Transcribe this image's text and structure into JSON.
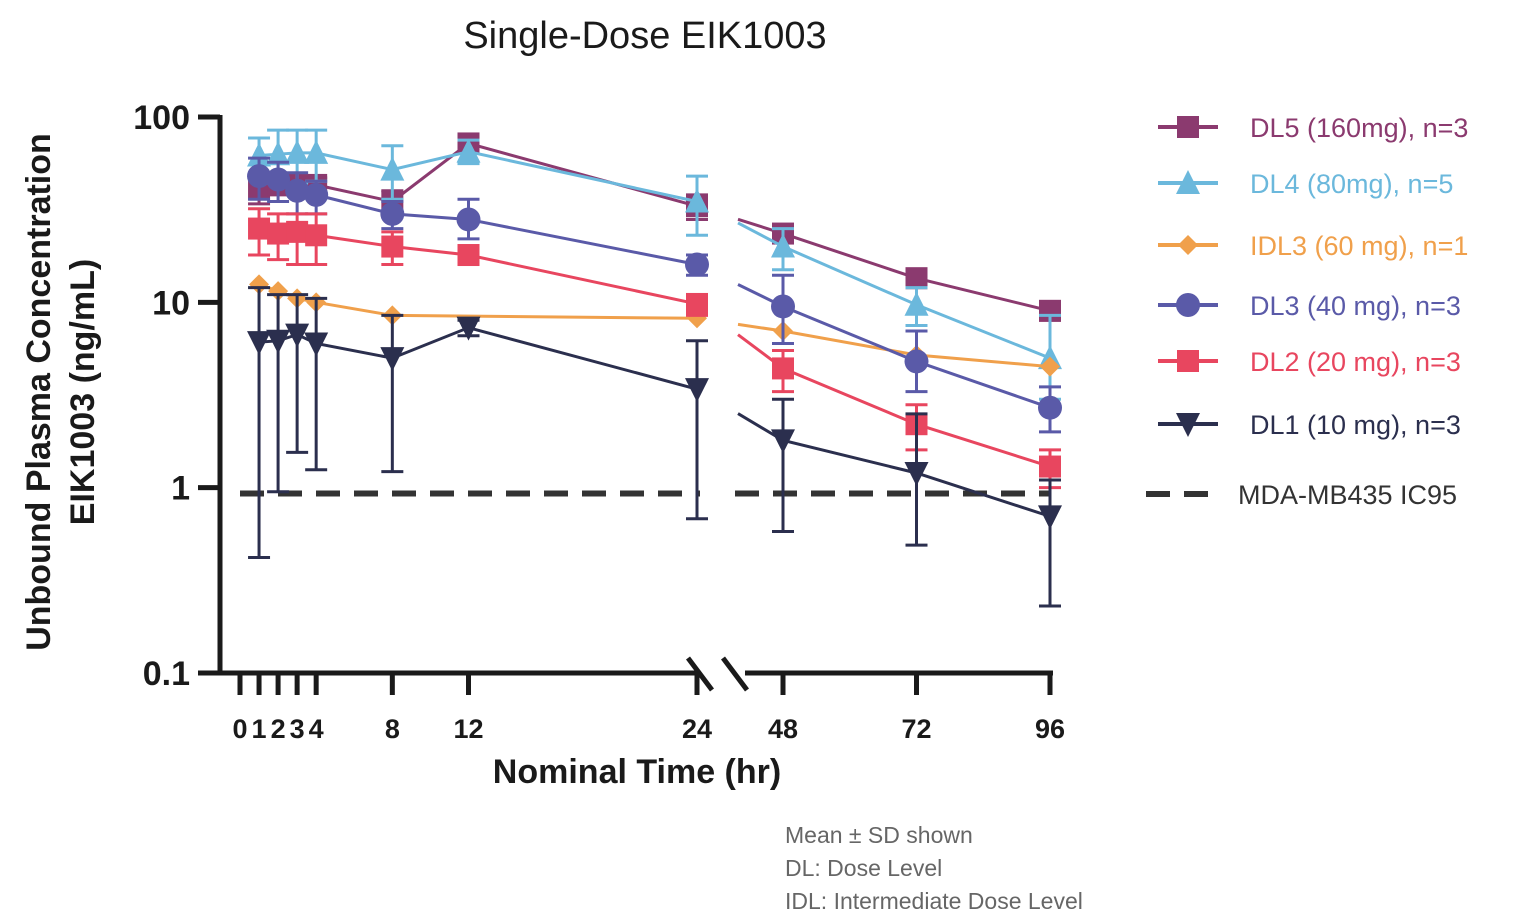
{
  "chart_data": {
    "type": "line",
    "title": "Single-Dose EIK1003",
    "xlabel": "Nominal Time (hr)",
    "ylabel_line1": "Unbound Plasma Concentration",
    "ylabel_line2": "EIK1003 (ng/mL)",
    "yscale": "log",
    "ylim": [
      0.1,
      100
    ],
    "y_ticks": [
      {
        "value": 0.1,
        "label": "0.1"
      },
      {
        "value": 1,
        "label": "1"
      },
      {
        "value": 10,
        "label": "10"
      },
      {
        "value": 100,
        "label": "100"
      }
    ],
    "x_break": "between 24 and 48",
    "x_ticks": [
      {
        "value": 0,
        "label": "0"
      },
      {
        "value": 1,
        "label": "1"
      },
      {
        "value": 2,
        "label": "2"
      },
      {
        "value": 3,
        "label": "3"
      },
      {
        "value": 4,
        "label": "4"
      },
      {
        "value": 8,
        "label": "8"
      },
      {
        "value": 12,
        "label": "12"
      },
      {
        "value": 24,
        "label": "24"
      },
      {
        "value": 48,
        "label": "48"
      },
      {
        "value": 72,
        "label": "72"
      },
      {
        "value": 96,
        "label": "96"
      }
    ],
    "reference_line": {
      "label": "MDA-MB435 IC95",
      "value": 0.93,
      "color": "#333333",
      "style": "dashed"
    },
    "series": [
      {
        "name": "DL5 (160mg), n=3",
        "color": "#8b3a6f",
        "marker": "square",
        "x": [
          1,
          2,
          3,
          4,
          8,
          12,
          24,
          48,
          72,
          96
        ],
        "y": [
          41,
          43,
          43,
          43,
          35,
          72,
          33,
          23.5,
          13.5,
          9
        ],
        "sd_hi": [
          50,
          48,
          48,
          47,
          40,
          78,
          38,
          26,
          15,
          10
        ],
        "sd_lo": [
          34,
          38,
          38,
          39,
          30,
          66,
          28,
          21,
          12,
          8
        ]
      },
      {
        "name": "DL4 (80mg), n=5",
        "color": "#6bb8dc",
        "marker": "triangle-up",
        "x": [
          1,
          2,
          3,
          4,
          8,
          12,
          24,
          48,
          72,
          96
        ],
        "y": [
          62,
          63,
          64,
          64,
          52,
          65,
          35,
          20,
          9.7,
          5
        ],
        "sd_hi": [
          77,
          85,
          85,
          85,
          70,
          75,
          48,
          25,
          12,
          8.5
        ],
        "sd_lo": [
          47,
          44,
          44,
          45,
          36,
          56,
          23,
          15,
          7.5,
          3
        ]
      },
      {
        "name": "IDL3 (60 mg), n=1",
        "color": "#f0a04b",
        "marker": "diamond",
        "x": [
          1,
          2,
          3,
          4,
          8,
          24,
          48,
          72,
          96
        ],
        "y": [
          12.5,
          11.5,
          10.5,
          10,
          8.5,
          8.2,
          7,
          5.2,
          4.5
        ]
      },
      {
        "name": "DL3 (40 mg), n=3",
        "color": "#5a5aa8",
        "marker": "circle",
        "x": [
          1,
          2,
          3,
          4,
          8,
          12,
          24,
          48,
          72,
          96
        ],
        "y": [
          48,
          46,
          40,
          38,
          30,
          28,
          16,
          9.5,
          4.8,
          2.7
        ],
        "sd_hi": [
          60,
          57,
          50,
          45,
          35,
          36,
          18,
          14,
          7,
          3.5
        ],
        "sd_lo": [
          36,
          35,
          30,
          30,
          25,
          22,
          14,
          6,
          3.3,
          2
        ]
      },
      {
        "name": "DL2 (20 mg), n=3",
        "color": "#e8465f",
        "marker": "square",
        "x": [
          1,
          2,
          3,
          4,
          8,
          12,
          24,
          48,
          72,
          96
        ],
        "y": [
          25,
          23.5,
          24,
          23,
          20,
          18,
          9.8,
          4.4,
          2.2,
          1.3
        ],
        "sd_hi": [
          32,
          30,
          30,
          30,
          24,
          20,
          11,
          5.5,
          2.8,
          1.6
        ],
        "sd_lo": [
          18,
          17,
          16,
          16,
          16,
          16,
          8.5,
          3.3,
          1.6,
          1.0
        ]
      },
      {
        "name": "DL1 (10 mg), n=3",
        "color": "#2b2f4e",
        "marker": "triangle-down",
        "x": [
          1,
          2,
          3,
          4,
          8,
          12,
          24,
          48,
          72,
          96
        ],
        "y": [
          6.1,
          6.2,
          6.7,
          6,
          5,
          7.3,
          3.4,
          1.8,
          1.2,
          0.7
        ],
        "sd_hi": [
          12,
          11,
          11,
          10.5,
          8.5,
          8,
          6.2,
          3,
          2.5,
          1.1
        ],
        "sd_lo": [
          0.42,
          0.95,
          1.55,
          1.25,
          1.22,
          6.6,
          0.68,
          0.58,
          0.49,
          0.23
        ]
      }
    ],
    "notes": [
      "Mean ± SD shown",
      "DL: Dose Level",
      "IDL: Intermediate Dose Level"
    ]
  }
}
